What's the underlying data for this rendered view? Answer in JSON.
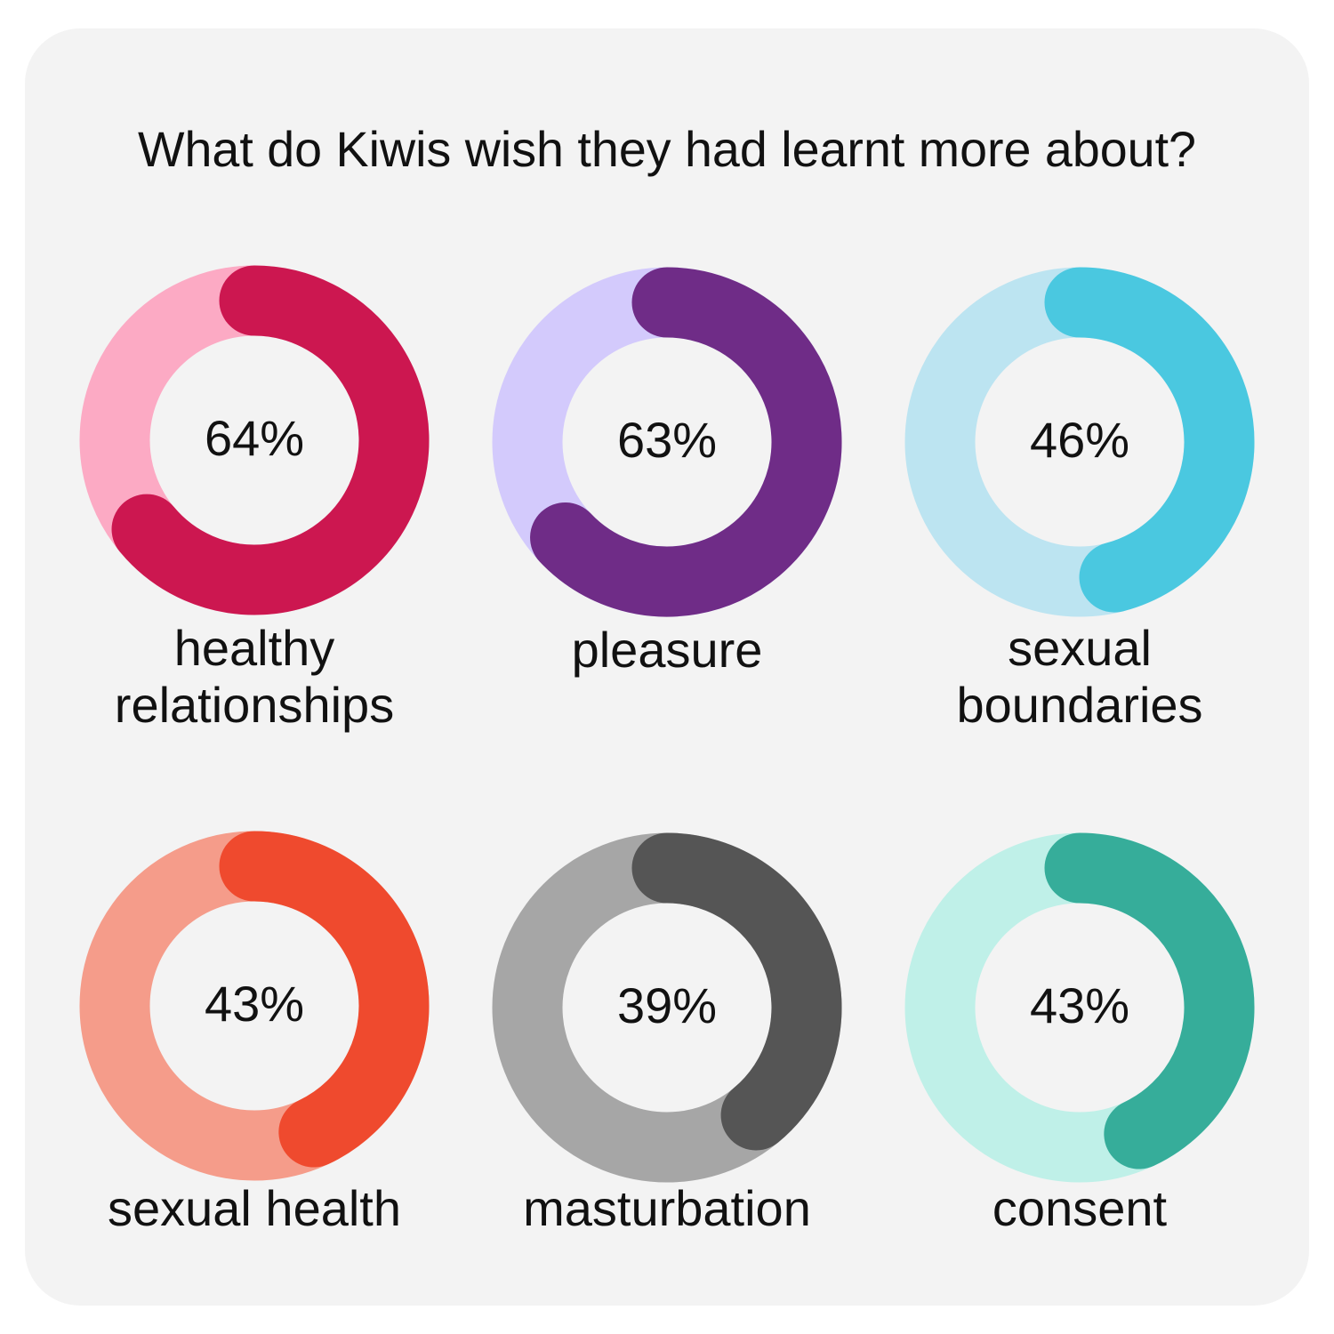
{
  "title": "What do Kiwis wish they had learnt more about?",
  "chart_data": [
    {
      "type": "donut",
      "label": [
        "healthy",
        "relationships"
      ],
      "values": [
        64
      ],
      "value_labels": [
        "64%"
      ],
      "ylim": [
        0,
        100
      ],
      "color": "#cc1750",
      "track_color": "#fcaac4"
    },
    {
      "type": "donut",
      "label": [
        "pleasure"
      ],
      "values": [
        63
      ],
      "value_labels": [
        "63%"
      ],
      "ylim": [
        0,
        100
      ],
      "color": "#6f2c87",
      "track_color": "#d3cafc"
    },
    {
      "type": "donut",
      "label": [
        "sexual",
        "boundaries"
      ],
      "values": [
        46
      ],
      "value_labels": [
        "46%"
      ],
      "ylim": [
        0,
        100
      ],
      "color": "#4ac8e0",
      "track_color": "#bce4f1"
    },
    {
      "type": "donut",
      "label": [
        "sexual health"
      ],
      "values": [
        43
      ],
      "value_labels": [
        "43%"
      ],
      "ylim": [
        0,
        100
      ],
      "color": "#ef4a2e",
      "track_color": "#f59c8a"
    },
    {
      "type": "donut",
      "label": [
        "masturbation"
      ],
      "values": [
        39
      ],
      "value_labels": [
        "39%"
      ],
      "ylim": [
        0,
        100
      ],
      "color": "#555555",
      "track_color": "#a6a6a6"
    },
    {
      "type": "donut",
      "label": [
        "consent"
      ],
      "values": [
        43
      ],
      "value_labels": [
        "43%"
      ],
      "ylim": [
        0,
        100
      ],
      "color": "#36ad9a",
      "track_color": "#bff0e8"
    }
  ]
}
